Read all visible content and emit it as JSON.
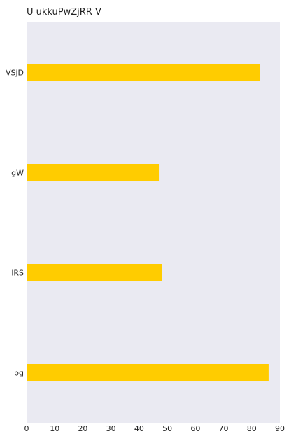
{
  "chart_data": {
    "type": "bar",
    "orientation": "horizontal",
    "title": "U ukkuPwZjRR V",
    "xlabel": "",
    "ylabel": "",
    "categories": [
      "VSjD",
      "gW",
      "lRS",
      "pg"
    ],
    "values": [
      83,
      47,
      48,
      86
    ],
    "xlim": [
      0,
      90
    ],
    "xticks": [
      0,
      10,
      20,
      30,
      40,
      50,
      60,
      70,
      80,
      90
    ],
    "grid": false,
    "legend": "none",
    "colors": {
      "bar": "#ffcc00",
      "plot_background": "#eaeaf2"
    }
  }
}
